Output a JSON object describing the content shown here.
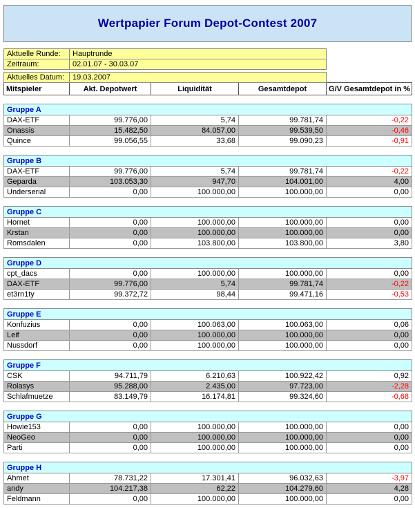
{
  "title": "Wertpapier Forum Depot-Contest 2007",
  "info": {
    "rows": [
      {
        "label": "Aktuelle Runde:",
        "value": "Hauptrunde"
      },
      {
        "label": "Zeitraum:",
        "value": "02.01.07 - 30.03.07"
      },
      {
        "label": "Aktuelles Datum:",
        "value": "19.03.2007"
      }
    ]
  },
  "table": {
    "headers": [
      "Mitspieler",
      "Akt. Depotwert",
      "Liquidität",
      "Gesamtdepot",
      "G/V Gesamtdepot in %"
    ],
    "groups": [
      {
        "name": "Gruppe A",
        "rows": [
          {
            "player": "DAX-ETF",
            "depotwert": "99.776,00",
            "liquiditaet": "5,74",
            "gesamtdepot": "99.781,74",
            "gv": "-0,22"
          },
          {
            "player": "Onassis",
            "depotwert": "15.482,50",
            "liquiditaet": "84.057,00",
            "gesamtdepot": "99.539,50",
            "gv": "-0,46"
          },
          {
            "player": "Quince",
            "depotwert": "99.056,55",
            "liquiditaet": "33,68",
            "gesamtdepot": "99.090,23",
            "gv": "-0,91"
          }
        ]
      },
      {
        "name": "Gruppe B",
        "rows": [
          {
            "player": "DAX-ETF",
            "depotwert": "99.776,00",
            "liquiditaet": "5,74",
            "gesamtdepot": "99.781,74",
            "gv": "-0,22"
          },
          {
            "player": "Geparda",
            "depotwert": "103.053,30",
            "liquiditaet": "947,70",
            "gesamtdepot": "104.001,00",
            "gv": "4,00"
          },
          {
            "player": "Underserial",
            "depotwert": "0,00",
            "liquiditaet": "100.000,00",
            "gesamtdepot": "100.000,00",
            "gv": "0,00"
          }
        ]
      },
      {
        "name": "Gruppe C",
        "rows": [
          {
            "player": "Hornet",
            "depotwert": "0,00",
            "liquiditaet": "100.000,00",
            "gesamtdepot": "100.000,00",
            "gv": "0,00"
          },
          {
            "player": "Krstan",
            "depotwert": "0,00",
            "liquiditaet": "100.000,00",
            "gesamtdepot": "100.000,00",
            "gv": "0,00"
          },
          {
            "player": "Romsdalen",
            "depotwert": "0,00",
            "liquiditaet": "103.800,00",
            "gesamtdepot": "103.800,00",
            "gv": "3,80"
          }
        ]
      },
      {
        "name": "Gruppe D",
        "rows": [
          {
            "player": "cpt_dacs",
            "depotwert": "0,00",
            "liquiditaet": "100.000,00",
            "gesamtdepot": "100.000,00",
            "gv": "0,00"
          },
          {
            "player": "DAX-ETF",
            "depotwert": "99.776,00",
            "liquiditaet": "5,74",
            "gesamtdepot": "99.781,74",
            "gv": "-0,22"
          },
          {
            "player": "et3rn1ty",
            "depotwert": "99.372,72",
            "liquiditaet": "98,44",
            "gesamtdepot": "99.471,16",
            "gv": "-0,53"
          }
        ]
      },
      {
        "name": "Gruppe E",
        "rows": [
          {
            "player": "Konfuzius",
            "depotwert": "0,00",
            "liquiditaet": "100.063,00",
            "gesamtdepot": "100.063,00",
            "gv": "0,06"
          },
          {
            "player": "Leif",
            "depotwert": "0,00",
            "liquiditaet": "100.000,00",
            "gesamtdepot": "100.000,00",
            "gv": "0,00"
          },
          {
            "player": "Nussdorf",
            "depotwert": "0,00",
            "liquiditaet": "100.000,00",
            "gesamtdepot": "100.000,00",
            "gv": "0,00"
          }
        ]
      },
      {
        "name": "Gruppe F",
        "rows": [
          {
            "player": "CSK",
            "depotwert": "94.711,79",
            "liquiditaet": "6.210,63",
            "gesamtdepot": "100.922,42",
            "gv": "0,92"
          },
          {
            "player": "Rolasys",
            "depotwert": "95.288,00",
            "liquiditaet": "2.435,00",
            "gesamtdepot": "97.723,00",
            "gv": "-2,28"
          },
          {
            "player": "Schlafmuetze",
            "depotwert": "83.149,79",
            "liquiditaet": "16.174,81",
            "gesamtdepot": "99.324,60",
            "gv": "-0,68"
          }
        ]
      },
      {
        "name": "Gruppe G",
        "rows": [
          {
            "player": "Howie153",
            "depotwert": "0,00",
            "liquiditaet": "100.000,00",
            "gesamtdepot": "100.000,00",
            "gv": "0,00"
          },
          {
            "player": "NeoGeo",
            "depotwert": "0,00",
            "liquiditaet": "100.000,00",
            "gesamtdepot": "100.000,00",
            "gv": "0,00"
          },
          {
            "player": "Parti",
            "depotwert": "0,00",
            "liquiditaet": "100.000,00",
            "gesamtdepot": "100.000,00",
            "gv": "0,00"
          }
        ]
      },
      {
        "name": "Gruppe H",
        "rows": [
          {
            "player": "Ahmet",
            "depotwert": "78.731,22",
            "liquiditaet": "17.301,41",
            "gesamtdepot": "96.032,63",
            "gv": "-3,97"
          },
          {
            "player": "andy",
            "depotwert": "104.217,38",
            "liquiditaet": "62,22",
            "gesamtdepot": "104.279,60",
            "gv": "4,28"
          },
          {
            "player": "Feldmann",
            "depotwert": "0,00",
            "liquiditaet": "100.000,00",
            "gesamtdepot": "100.000,00",
            "gv": "0,00"
          }
        ]
      }
    ]
  },
  "colors": {
    "title_bg": "#cbe4f5",
    "title_text": "#0000a0",
    "info_bg": "#ffff99",
    "group_header_bg": "#ccffff",
    "group_header_text": "#0000cc",
    "stripe_row_bg": "#c0c0c0",
    "negative_value": "#ff0000"
  }
}
